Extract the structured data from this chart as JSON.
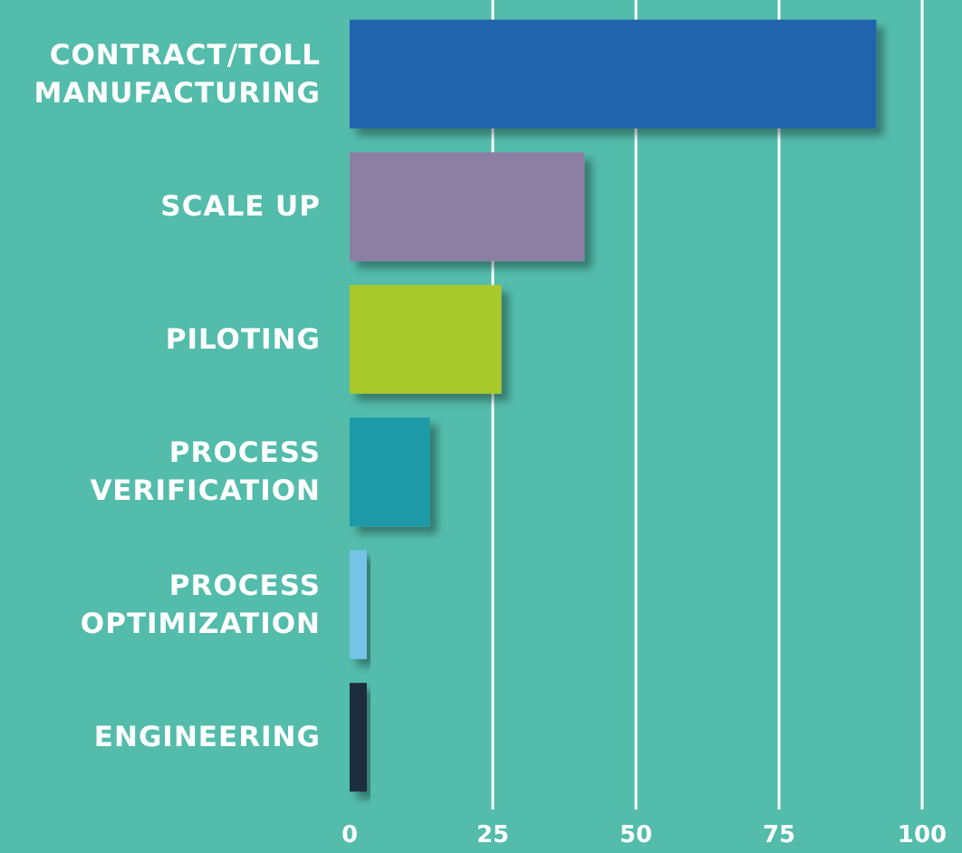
{
  "chart_data": {
    "type": "bar",
    "orientation": "horizontal",
    "categories": [
      "CONTRACT/TOLL MANUFACTURING",
      "SCALE UP",
      "PILOTING",
      "PROCESS VERIFICATION",
      "PROCESS OPTIMIZATION",
      "ENGINEERING"
    ],
    "values": [
      92,
      41,
      26.5,
      14,
      3,
      3
    ],
    "colors": [
      "#2463ae",
      "#8c7fa3",
      "#a9c92a",
      "#1a9aa8",
      "#77c3e8",
      "#1e2d3d"
    ],
    "xlim": [
      0,
      100
    ],
    "xticks": [
      0,
      25,
      50,
      75,
      100
    ],
    "grid": "x"
  }
}
